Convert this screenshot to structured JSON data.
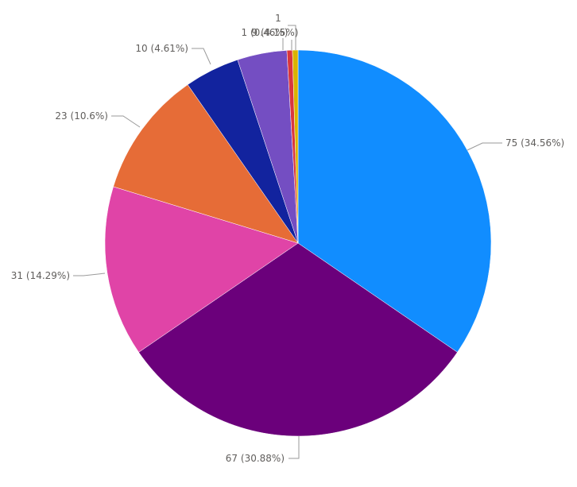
{
  "chart_data": {
    "type": "pie",
    "slices": [
      {
        "value": 75,
        "label": "75 (34.56%)",
        "color": "#118DFF"
      },
      {
        "value": 67,
        "label": "67 (30.88%)",
        "color": "#6B007B"
      },
      {
        "value": 31,
        "label": "31 (14.29%)",
        "color": "#E044A7"
      },
      {
        "value": 23,
        "label": "23 (10.6%)",
        "color": "#E66C37"
      },
      {
        "value": 10,
        "label": "10 (4.61%)",
        "color": "#12239E"
      },
      {
        "value": 9,
        "label": "9 (4.15%)",
        "color": "#744EC2"
      },
      {
        "value": 1,
        "label": "1 (0.46%)",
        "color": "#D9373E"
      },
      {
        "value": 1,
        "label": "1",
        "color": "#D9B300"
      }
    ],
    "label_style": "value (percent)"
  }
}
